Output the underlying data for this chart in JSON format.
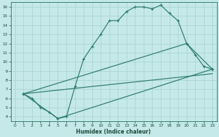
{
  "xlabel": "Humidex (Indice chaleur)",
  "bg_color": "#c5e8e8",
  "grid_color": "#aad4d4",
  "line_color": "#2e7d6e",
  "xlim": [
    -0.5,
    23.5
  ],
  "ylim": [
    3.5,
    16.5
  ],
  "xticks": [
    0,
    1,
    2,
    3,
    4,
    5,
    6,
    7,
    8,
    9,
    10,
    11,
    12,
    13,
    14,
    15,
    16,
    17,
    18,
    19,
    20,
    21,
    22,
    23
  ],
  "yticks": [
    4,
    5,
    6,
    7,
    8,
    9,
    10,
    11,
    12,
    13,
    14,
    15,
    16
  ],
  "line1_x": [
    1,
    2,
    3,
    4,
    5,
    6,
    7,
    8,
    9,
    10,
    11,
    12,
    13,
    14,
    15,
    16,
    17,
    18,
    19,
    20,
    21,
    22,
    23
  ],
  "line1_y": [
    6.5,
    6.0,
    5.0,
    4.5,
    3.8,
    4.0,
    7.3,
    10.3,
    11.7,
    13.0,
    14.5,
    14.5,
    15.5,
    16.0,
    16.0,
    15.8,
    16.2,
    15.3,
    14.5,
    12.0,
    10.8,
    9.5,
    9.2
  ],
  "line2_x": [
    1,
    5,
    23
  ],
  "line2_y": [
    6.5,
    3.8,
    9.2
  ],
  "line3_x": [
    1,
    20,
    23
  ],
  "line3_y": [
    6.5,
    12.0,
    9.2
  ],
  "line4_x": [
    1,
    23
  ],
  "line4_y": [
    6.5,
    8.7
  ]
}
